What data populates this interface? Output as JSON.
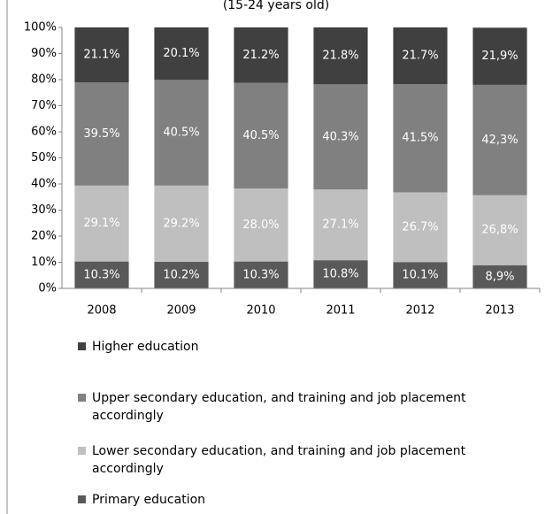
{
  "chart_data": {
    "type": "bar",
    "stacked": true,
    "subtitle": "(15-24 years old)",
    "categories": [
      "2008",
      "2009",
      "2010",
      "2011",
      "2012",
      "2013"
    ],
    "series": [
      {
        "name": "Primary education",
        "color": "#595959",
        "values": [
          10.3,
          10.2,
          10.3,
          10.8,
          10.1,
          8.9
        ],
        "value_labels": [
          "10.3%",
          "10.2%",
          "10.3%",
          "10.8%",
          "10.1%",
          "8,9%"
        ]
      },
      {
        "name": "Lower secondary education, and training and job placement accordingly",
        "color": "#bfbfbf",
        "values": [
          29.1,
          29.2,
          28.0,
          27.1,
          26.7,
          26.8
        ],
        "value_labels": [
          "29.1%",
          "29.2%",
          "28.0%",
          "27.1%",
          "26.7%",
          "26,8%"
        ]
      },
      {
        "name": "Upper secondary education, and training and job placement accordingly",
        "color": "#808080",
        "values": [
          39.5,
          40.5,
          40.5,
          40.3,
          41.5,
          42.3
        ],
        "value_labels": [
          "39.5%",
          "40.5%",
          "40.5%",
          "40.3%",
          "41.5%",
          "42,3%"
        ]
      },
      {
        "name": "Higher education",
        "color": "#404040",
        "values": [
          21.1,
          20.1,
          21.2,
          21.8,
          21.7,
          21.9
        ],
        "value_labels": [
          "21.1%",
          "20.1%",
          "21.2%",
          "21.8%",
          "21.7%",
          "21,9%"
        ]
      }
    ],
    "ylim": [
      0,
      100
    ],
    "yticks": [
      {
        "value": 0,
        "label": "0%"
      },
      {
        "value": 10,
        "label": "10%"
      },
      {
        "value": 20,
        "label": "20%"
      },
      {
        "value": 30,
        "label": "30%"
      },
      {
        "value": 40,
        "label": "40%"
      },
      {
        "value": 50,
        "label": "50%"
      },
      {
        "value": 60,
        "label": "60%"
      },
      {
        "value": 70,
        "label": "70%"
      },
      {
        "value": 80,
        "label": "80%"
      },
      {
        "value": 90,
        "label": "90%"
      },
      {
        "value": 100,
        "label": "100%"
      }
    ],
    "legend": "bottom"
  }
}
